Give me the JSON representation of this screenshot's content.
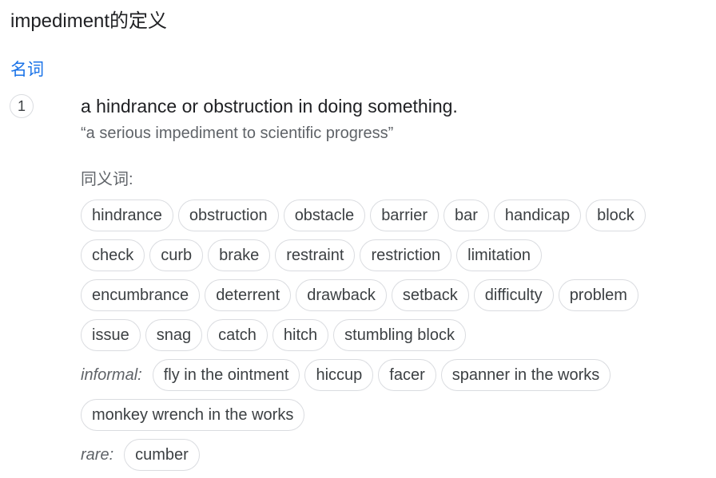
{
  "header": {
    "title": "impediment的定义"
  },
  "entry": {
    "part_of_speech": "名词",
    "sense_number": "1",
    "definition": "a hindrance or obstruction in doing something.",
    "example": "“a serious impediment to scientific progress”",
    "synonyms_label": "同义词:",
    "synonym_rows": [
      [
        "hindrance",
        "obstruction",
        "obstacle",
        "barrier",
        "bar",
        "handicap",
        "block"
      ],
      [
        "check",
        "curb",
        "brake",
        "restraint",
        "restriction",
        "limitation"
      ],
      [
        "encumbrance",
        "deterrent",
        "drawback",
        "setback",
        "difficulty",
        "problem"
      ],
      [
        "issue",
        "snag",
        "catch",
        "hitch",
        "stumbling block"
      ]
    ],
    "informal_label": "informal:",
    "informal_rows": [
      [
        "fly in the ointment",
        "hiccup",
        "facer",
        "spanner in the works"
      ],
      [
        "monkey wrench in the works"
      ]
    ],
    "rare_label": "rare:",
    "rare_synonyms": [
      "cumber"
    ]
  }
}
